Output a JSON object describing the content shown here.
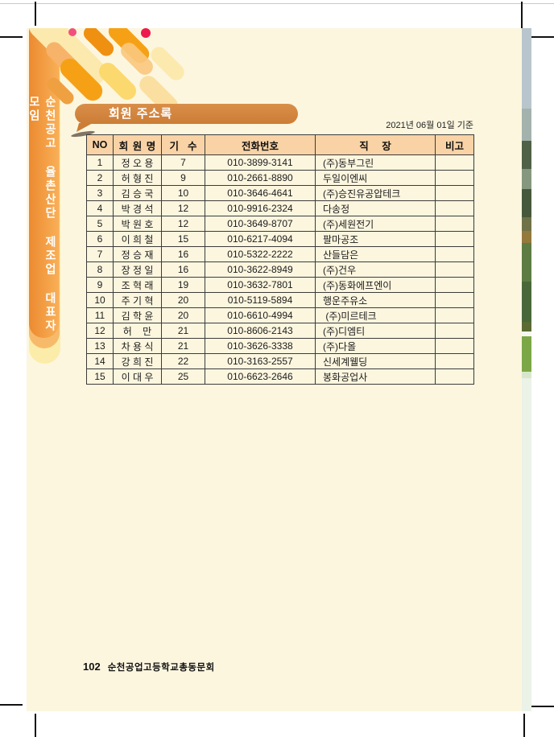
{
  "page": {
    "sidebar_title": "순천공고 율촌산단 제조업 대표자 모임",
    "title": "회원 주소록",
    "date_note": "2021년 06월 01일 기준",
    "footer": {
      "page_number": "102",
      "org": "순천공업고등학교총동문회"
    }
  },
  "table": {
    "headers": [
      "NO",
      "회 원 명",
      "기  수",
      "전화번호",
      "직   장",
      "비고"
    ],
    "rows": [
      {
        "no": "1",
        "name": "정 오 용",
        "cohort": "7",
        "phone": "010-3899-3141",
        "workplace": "(주)동부그린",
        "note": ""
      },
      {
        "no": "2",
        "name": "허 형 진",
        "cohort": "9",
        "phone": "010-2661-8890",
        "workplace": "두일이엔씨",
        "note": ""
      },
      {
        "no": "3",
        "name": "김 승 국",
        "cohort": "10",
        "phone": "010-3646-4641",
        "workplace": "(주)승진유공압테크",
        "note": ""
      },
      {
        "no": "4",
        "name": "박 경 석",
        "cohort": "12",
        "phone": "010-9916-2324",
        "workplace": "다송정",
        "note": ""
      },
      {
        "no": "5",
        "name": "박 원 호",
        "cohort": "12",
        "phone": "010-3649-8707",
        "workplace": "(주)세원전기",
        "note": ""
      },
      {
        "no": "6",
        "name": "이 희 철",
        "cohort": "15",
        "phone": "010-6217-4094",
        "workplace": "팔마공조",
        "note": ""
      },
      {
        "no": "7",
        "name": "정 승 재",
        "cohort": "16",
        "phone": "010-5322-2222",
        "workplace": "산들담은",
        "note": ""
      },
      {
        "no": "8",
        "name": "장 정 일",
        "cohort": "16",
        "phone": "010-3622-8949",
        "workplace": "(주)건우",
        "note": ""
      },
      {
        "no": "9",
        "name": "조 혁 래",
        "cohort": "19",
        "phone": "010-3632-7801",
        "workplace": "(주)동화에프엔이",
        "note": ""
      },
      {
        "no": "10",
        "name": "주 기 혁",
        "cohort": "20",
        "phone": "010-5119-5894",
        "workplace": "행운주유소",
        "note": ""
      },
      {
        "no": "11",
        "name": "김 학 윤",
        "cohort": "20",
        "phone": "010-6610-4994",
        "workplace": " (주)미르테크",
        "note": ""
      },
      {
        "no": "12",
        "name": "허    만",
        "cohort": "21",
        "phone": "010-8606-2143",
        "workplace": "(주)디엠티",
        "note": ""
      },
      {
        "no": "13",
        "name": "차 용 식",
        "cohort": "21",
        "phone": "010-3626-3338",
        "workplace": "(주)다올",
        "note": ""
      },
      {
        "no": "14",
        "name": "강 희 진",
        "cohort": "22",
        "phone": "010-3163-2557",
        "workplace": "신세계웰딩",
        "note": ""
      },
      {
        "no": "15",
        "name": "이 대 우",
        "cohort": "25",
        "phone": "010-6623-2646",
        "workplace": "봉화공업사",
        "note": ""
      }
    ]
  },
  "colors": {
    "page_bg": "#FCF6DF",
    "sidebar_orange": "#F0953C",
    "badge_orange": "#CC7D36",
    "table_header_bg": "#F9D3A6",
    "capsule_orange": "#F6A115",
    "capsule_dark": "#F09011",
    "capsule_pale": "#FCE9AE",
    "dot_pink": "#F2507C",
    "dot_crimson": "#ED1A4E",
    "photo_sky": "#B9C5CD",
    "photo_green": "#7CA747"
  }
}
